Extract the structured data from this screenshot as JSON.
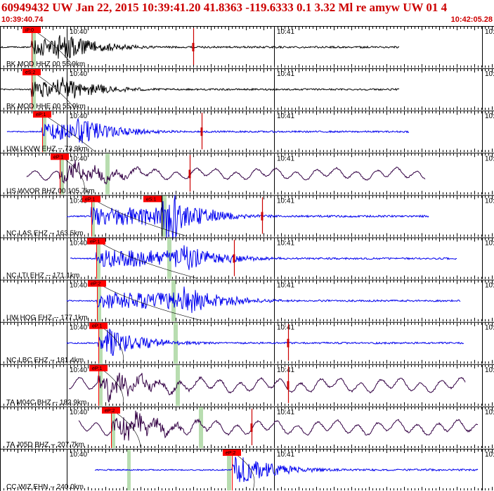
{
  "header": {
    "title": "60949432 UW Jan 22, 2015 10:39:41.20   41.8363 -119.6333  0.1 3.32 Ml re amyw UW 01   4",
    "start_time": "10:39:40.74",
    "end_time": "10:42:05.28"
  },
  "time_labels": [
    "10:40",
    "10:41",
    "10:4"
  ],
  "colors": {
    "title": "#cc0000",
    "pick_box": "#ff0000",
    "gap_band": "#b8ddb0",
    "trace_blue": "#0000ee",
    "trace_black": "#000000",
    "trace_purple": "#330044",
    "theory_curve": "#000000",
    "arrival_marker": "#cc0000"
  },
  "traces": [
    {
      "label": "BK MOD HHZ 00 55.9km",
      "color": "black",
      "pick": "iP:0",
      "amp": 22
    },
    {
      "label": "BK MOD HHE 00 55.9km",
      "color": "black",
      "pick": "eS:2",
      "amp": 20
    },
    {
      "label": "UW LKVW EHZ -- 73.9km",
      "color": "blue",
      "pick": "eP:1",
      "amp": 20
    },
    {
      "label": "US WVOR BHZ 00 105.7km",
      "color": "purple",
      "pick": "eP:1",
      "amp": 16
    },
    {
      "label": "NC LAS EHZ -- 163.5km",
      "color": "blue",
      "pick": "eP:1",
      "pick2": "eS:1",
      "amp": 24
    },
    {
      "label": "NC LTI EHZ -- 171.1km",
      "color": "blue",
      "pick": "eP:1",
      "amp": 22
    },
    {
      "label": "UW HOG EHZ -- 177.1km",
      "color": "blue",
      "pick": "eP:2",
      "amp": 22
    },
    {
      "label": "NC LBC EHZ -- 181.4km",
      "color": "blue",
      "pick": "eP:1",
      "amp": 22
    },
    {
      "label": "TA M04C BHZ -- 182.9km",
      "color": "purple",
      "pick": "eP:1",
      "amp": 20
    },
    {
      "label": "TA J05D BHZ -- 207.7km",
      "color": "purple",
      "pick": "eP:2",
      "amp": 20
    },
    {
      "label": "CC WIZ EHN -- 240.0km",
      "color": "blue",
      "pick": "eP:2",
      "amp": 22
    }
  ]
}
